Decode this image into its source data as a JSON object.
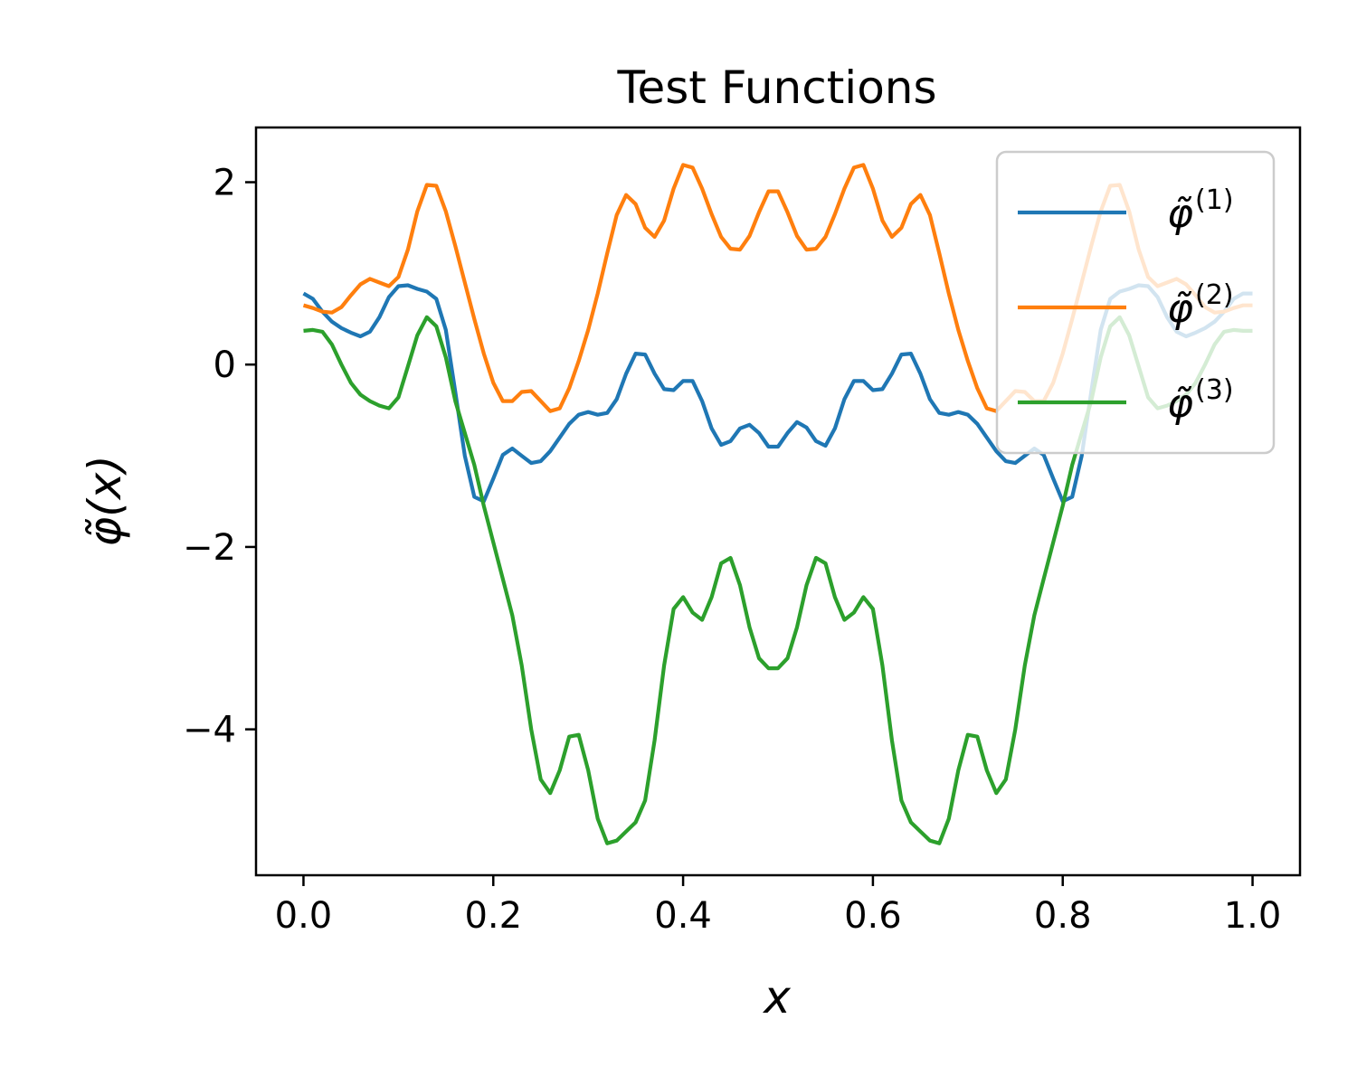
{
  "chart_data": {
    "type": "line",
    "title": "Test Functions",
    "xlabel": "x",
    "ylabel": "φ̃(x)",
    "xlim": [
      -0.05,
      1.05
    ],
    "ylim": [
      -5.6,
      2.6
    ],
    "xticks": [
      {
        "value": 0.0,
        "label": "0.0"
      },
      {
        "value": 0.2,
        "label": "0.2"
      },
      {
        "value": 0.4,
        "label": "0.4"
      },
      {
        "value": 0.6,
        "label": "0.6"
      },
      {
        "value": 0.8,
        "label": "0.8"
      },
      {
        "value": 1.0,
        "label": "1.0"
      }
    ],
    "yticks": [
      {
        "value": 2,
        "label": "2"
      },
      {
        "value": 0,
        "label": "0"
      },
      {
        "value": -2,
        "label": "−2"
      },
      {
        "value": -4,
        "label": "−4"
      }
    ],
    "grid": false,
    "legend_position": "top-right",
    "series": [
      {
        "name": "φ̃",
        "name_sup": "(1)",
        "color": "#1f77b4",
        "points": [
          [
            0.0,
            0.78
          ],
          [
            0.01,
            0.72
          ],
          [
            0.02,
            0.58
          ],
          [
            0.03,
            0.47
          ],
          [
            0.04,
            0.4
          ],
          [
            0.05,
            0.35
          ],
          [
            0.06,
            0.31
          ],
          [
            0.07,
            0.36
          ],
          [
            0.08,
            0.52
          ],
          [
            0.09,
            0.74
          ],
          [
            0.1,
            0.86
          ],
          [
            0.11,
            0.87
          ],
          [
            0.12,
            0.83
          ],
          [
            0.13,
            0.8
          ],
          [
            0.14,
            0.72
          ],
          [
            0.15,
            0.38
          ],
          [
            0.16,
            -0.3
          ],
          [
            0.17,
            -1.0
          ],
          [
            0.18,
            -1.45
          ],
          [
            0.19,
            -1.5
          ],
          [
            0.2,
            -1.25
          ],
          [
            0.21,
            -0.99
          ],
          [
            0.22,
            -0.92
          ],
          [
            0.23,
            -1.0
          ],
          [
            0.24,
            -1.08
          ],
          [
            0.25,
            -1.06
          ],
          [
            0.26,
            -0.95
          ],
          [
            0.27,
            -0.8
          ],
          [
            0.28,
            -0.65
          ],
          [
            0.29,
            -0.55
          ],
          [
            0.3,
            -0.52
          ],
          [
            0.31,
            -0.55
          ],
          [
            0.32,
            -0.53
          ],
          [
            0.33,
            -0.38
          ],
          [
            0.34,
            -0.1
          ],
          [
            0.35,
            0.12
          ],
          [
            0.36,
            0.11
          ],
          [
            0.37,
            -0.1
          ],
          [
            0.38,
            -0.27
          ],
          [
            0.39,
            -0.28
          ],
          [
            0.4,
            -0.18
          ],
          [
            0.41,
            -0.18
          ],
          [
            0.42,
            -0.4
          ],
          [
            0.43,
            -0.7
          ],
          [
            0.44,
            -0.88
          ],
          [
            0.45,
            -0.84
          ],
          [
            0.46,
            -0.7
          ],
          [
            0.47,
            -0.66
          ],
          [
            0.48,
            -0.75
          ],
          [
            0.49,
            -0.9
          ],
          [
            0.5,
            -0.9
          ],
          [
            0.51,
            -0.75
          ],
          [
            0.52,
            -0.63
          ],
          [
            0.53,
            -0.69
          ],
          [
            0.54,
            -0.84
          ],
          [
            0.55,
            -0.89
          ],
          [
            0.56,
            -0.7
          ],
          [
            0.57,
            -0.38
          ],
          [
            0.58,
            -0.18
          ],
          [
            0.59,
            -0.18
          ],
          [
            0.6,
            -0.28
          ],
          [
            0.61,
            -0.27
          ],
          [
            0.62,
            -0.1
          ],
          [
            0.63,
            0.11
          ],
          [
            0.64,
            0.12
          ],
          [
            0.65,
            -0.1
          ],
          [
            0.66,
            -0.38
          ],
          [
            0.67,
            -0.53
          ],
          [
            0.68,
            -0.55
          ],
          [
            0.69,
            -0.52
          ],
          [
            0.7,
            -0.55
          ],
          [
            0.71,
            -0.65
          ],
          [
            0.72,
            -0.8
          ],
          [
            0.73,
            -0.95
          ],
          [
            0.74,
            -1.06
          ],
          [
            0.75,
            -1.08
          ],
          [
            0.76,
            -1.0
          ],
          [
            0.77,
            -0.92
          ],
          [
            0.78,
            -0.99
          ],
          [
            0.79,
            -1.25
          ],
          [
            0.8,
            -1.5
          ],
          [
            0.81,
            -1.45
          ],
          [
            0.82,
            -1.0
          ],
          [
            0.83,
            -0.3
          ],
          [
            0.84,
            0.38
          ],
          [
            0.85,
            0.72
          ],
          [
            0.86,
            0.8
          ],
          [
            0.87,
            0.83
          ],
          [
            0.88,
            0.87
          ],
          [
            0.89,
            0.86
          ],
          [
            0.9,
            0.74
          ],
          [
            0.91,
            0.52
          ],
          [
            0.92,
            0.36
          ],
          [
            0.93,
            0.31
          ],
          [
            0.94,
            0.35
          ],
          [
            0.95,
            0.4
          ],
          [
            0.96,
            0.47
          ],
          [
            0.97,
            0.58
          ],
          [
            0.98,
            0.72
          ],
          [
            0.99,
            0.78
          ],
          [
            1.0,
            0.78
          ]
        ]
      },
      {
        "name": "φ̃",
        "name_sup": "(2)",
        "color": "#ff7f0e",
        "points": [
          [
            0.0,
            0.65
          ],
          [
            0.01,
            0.62
          ],
          [
            0.02,
            0.58
          ],
          [
            0.03,
            0.57
          ],
          [
            0.04,
            0.63
          ],
          [
            0.05,
            0.76
          ],
          [
            0.06,
            0.88
          ],
          [
            0.07,
            0.94
          ],
          [
            0.08,
            0.9
          ],
          [
            0.09,
            0.86
          ],
          [
            0.1,
            0.96
          ],
          [
            0.11,
            1.26
          ],
          [
            0.12,
            1.68
          ],
          [
            0.13,
            1.97
          ],
          [
            0.14,
            1.96
          ],
          [
            0.15,
            1.68
          ],
          [
            0.16,
            1.3
          ],
          [
            0.17,
            0.9
          ],
          [
            0.18,
            0.5
          ],
          [
            0.19,
            0.12
          ],
          [
            0.2,
            -0.2
          ],
          [
            0.21,
            -0.4
          ],
          [
            0.22,
            -0.4
          ],
          [
            0.23,
            -0.3
          ],
          [
            0.24,
            -0.29
          ],
          [
            0.25,
            -0.4
          ],
          [
            0.26,
            -0.51
          ],
          [
            0.27,
            -0.48
          ],
          [
            0.28,
            -0.26
          ],
          [
            0.29,
            0.04
          ],
          [
            0.3,
            0.38
          ],
          [
            0.31,
            0.78
          ],
          [
            0.32,
            1.22
          ],
          [
            0.33,
            1.64
          ],
          [
            0.34,
            1.86
          ],
          [
            0.35,
            1.76
          ],
          [
            0.36,
            1.5
          ],
          [
            0.37,
            1.4
          ],
          [
            0.38,
            1.58
          ],
          [
            0.39,
            1.93
          ],
          [
            0.4,
            2.19
          ],
          [
            0.41,
            2.16
          ],
          [
            0.42,
            1.93
          ],
          [
            0.43,
            1.65
          ],
          [
            0.44,
            1.4
          ],
          [
            0.45,
            1.27
          ],
          [
            0.46,
            1.26
          ],
          [
            0.47,
            1.41
          ],
          [
            0.48,
            1.67
          ],
          [
            0.49,
            1.9
          ],
          [
            0.5,
            1.9
          ],
          [
            0.51,
            1.67
          ],
          [
            0.52,
            1.41
          ],
          [
            0.53,
            1.26
          ],
          [
            0.54,
            1.27
          ],
          [
            0.55,
            1.4
          ],
          [
            0.56,
            1.65
          ],
          [
            0.57,
            1.93
          ],
          [
            0.58,
            2.16
          ],
          [
            0.59,
            2.19
          ],
          [
            0.6,
            1.93
          ],
          [
            0.61,
            1.58
          ],
          [
            0.62,
            1.4
          ],
          [
            0.63,
            1.5
          ],
          [
            0.64,
            1.76
          ],
          [
            0.65,
            1.86
          ],
          [
            0.66,
            1.64
          ],
          [
            0.67,
            1.22
          ],
          [
            0.68,
            0.78
          ],
          [
            0.69,
            0.38
          ],
          [
            0.7,
            0.04
          ],
          [
            0.71,
            -0.26
          ],
          [
            0.72,
            -0.48
          ],
          [
            0.73,
            -0.51
          ],
          [
            0.74,
            -0.4
          ],
          [
            0.75,
            -0.29
          ],
          [
            0.76,
            -0.3
          ],
          [
            0.77,
            -0.4
          ],
          [
            0.78,
            -0.4
          ],
          [
            0.79,
            -0.2
          ],
          [
            0.8,
            0.12
          ],
          [
            0.81,
            0.5
          ],
          [
            0.82,
            0.9
          ],
          [
            0.83,
            1.3
          ],
          [
            0.84,
            1.68
          ],
          [
            0.85,
            1.96
          ],
          [
            0.86,
            1.97
          ],
          [
            0.87,
            1.68
          ],
          [
            0.88,
            1.26
          ],
          [
            0.89,
            0.96
          ],
          [
            0.9,
            0.86
          ],
          [
            0.91,
            0.9
          ],
          [
            0.92,
            0.94
          ],
          [
            0.93,
            0.88
          ],
          [
            0.94,
            0.76
          ],
          [
            0.95,
            0.63
          ],
          [
            0.96,
            0.57
          ],
          [
            0.97,
            0.58
          ],
          [
            0.98,
            0.62
          ],
          [
            0.99,
            0.65
          ],
          [
            1.0,
            0.65
          ]
        ]
      },
      {
        "name": "φ̃",
        "name_sup": "(3)",
        "color": "#2ca02c",
        "points": [
          [
            0.0,
            0.37
          ],
          [
            0.01,
            0.38
          ],
          [
            0.02,
            0.36
          ],
          [
            0.03,
            0.22
          ],
          [
            0.04,
            0.0
          ],
          [
            0.05,
            -0.2
          ],
          [
            0.06,
            -0.33
          ],
          [
            0.07,
            -0.4
          ],
          [
            0.08,
            -0.45
          ],
          [
            0.09,
            -0.48
          ],
          [
            0.1,
            -0.36
          ],
          [
            0.11,
            -0.02
          ],
          [
            0.12,
            0.32
          ],
          [
            0.13,
            0.52
          ],
          [
            0.14,
            0.42
          ],
          [
            0.15,
            0.08
          ],
          [
            0.16,
            -0.4
          ],
          [
            0.17,
            -0.75
          ],
          [
            0.18,
            -1.1
          ],
          [
            0.19,
            -1.55
          ],
          [
            0.2,
            -1.95
          ],
          [
            0.21,
            -2.35
          ],
          [
            0.22,
            -2.75
          ],
          [
            0.23,
            -3.3
          ],
          [
            0.24,
            -4.0
          ],
          [
            0.25,
            -4.55
          ],
          [
            0.26,
            -4.7
          ],
          [
            0.27,
            -4.45
          ],
          [
            0.28,
            -4.08
          ],
          [
            0.29,
            -4.06
          ],
          [
            0.3,
            -4.45
          ],
          [
            0.31,
            -4.98
          ],
          [
            0.32,
            -5.25
          ],
          [
            0.33,
            -5.22
          ],
          [
            0.34,
            -5.12
          ],
          [
            0.35,
            -5.02
          ],
          [
            0.36,
            -4.78
          ],
          [
            0.37,
            -4.12
          ],
          [
            0.38,
            -3.3
          ],
          [
            0.39,
            -2.68
          ],
          [
            0.4,
            -2.55
          ],
          [
            0.41,
            -2.72
          ],
          [
            0.42,
            -2.8
          ],
          [
            0.43,
            -2.55
          ],
          [
            0.44,
            -2.18
          ],
          [
            0.45,
            -2.12
          ],
          [
            0.46,
            -2.42
          ],
          [
            0.47,
            -2.88
          ],
          [
            0.48,
            -3.22
          ],
          [
            0.49,
            -3.33
          ],
          [
            0.5,
            -3.33
          ],
          [
            0.51,
            -3.22
          ],
          [
            0.52,
            -2.88
          ],
          [
            0.53,
            -2.42
          ],
          [
            0.54,
            -2.12
          ],
          [
            0.55,
            -2.18
          ],
          [
            0.56,
            -2.55
          ],
          [
            0.57,
            -2.8
          ],
          [
            0.58,
            -2.72
          ],
          [
            0.59,
            -2.55
          ],
          [
            0.6,
            -2.68
          ],
          [
            0.61,
            -3.3
          ],
          [
            0.62,
            -4.12
          ],
          [
            0.63,
            -4.78
          ],
          [
            0.64,
            -5.02
          ],
          [
            0.65,
            -5.12
          ],
          [
            0.66,
            -5.22
          ],
          [
            0.67,
            -5.25
          ],
          [
            0.68,
            -4.98
          ],
          [
            0.69,
            -4.45
          ],
          [
            0.7,
            -4.06
          ],
          [
            0.71,
            -4.08
          ],
          [
            0.72,
            -4.45
          ],
          [
            0.73,
            -4.7
          ],
          [
            0.74,
            -4.55
          ],
          [
            0.75,
            -4.0
          ],
          [
            0.76,
            -3.3
          ],
          [
            0.77,
            -2.75
          ],
          [
            0.78,
            -2.35
          ],
          [
            0.79,
            -1.95
          ],
          [
            0.8,
            -1.55
          ],
          [
            0.81,
            -1.1
          ],
          [
            0.82,
            -0.75
          ],
          [
            0.83,
            -0.4
          ],
          [
            0.84,
            0.08
          ],
          [
            0.85,
            0.42
          ],
          [
            0.86,
            0.52
          ],
          [
            0.87,
            0.32
          ],
          [
            0.88,
            -0.02
          ],
          [
            0.89,
            -0.36
          ],
          [
            0.9,
            -0.48
          ],
          [
            0.91,
            -0.45
          ],
          [
            0.92,
            -0.4
          ],
          [
            0.93,
            -0.33
          ],
          [
            0.94,
            -0.2
          ],
          [
            0.95,
            0.0
          ],
          [
            0.96,
            0.22
          ],
          [
            0.97,
            0.36
          ],
          [
            0.98,
            0.38
          ],
          [
            0.99,
            0.37
          ],
          [
            1.0,
            0.37
          ]
        ]
      }
    ]
  }
}
